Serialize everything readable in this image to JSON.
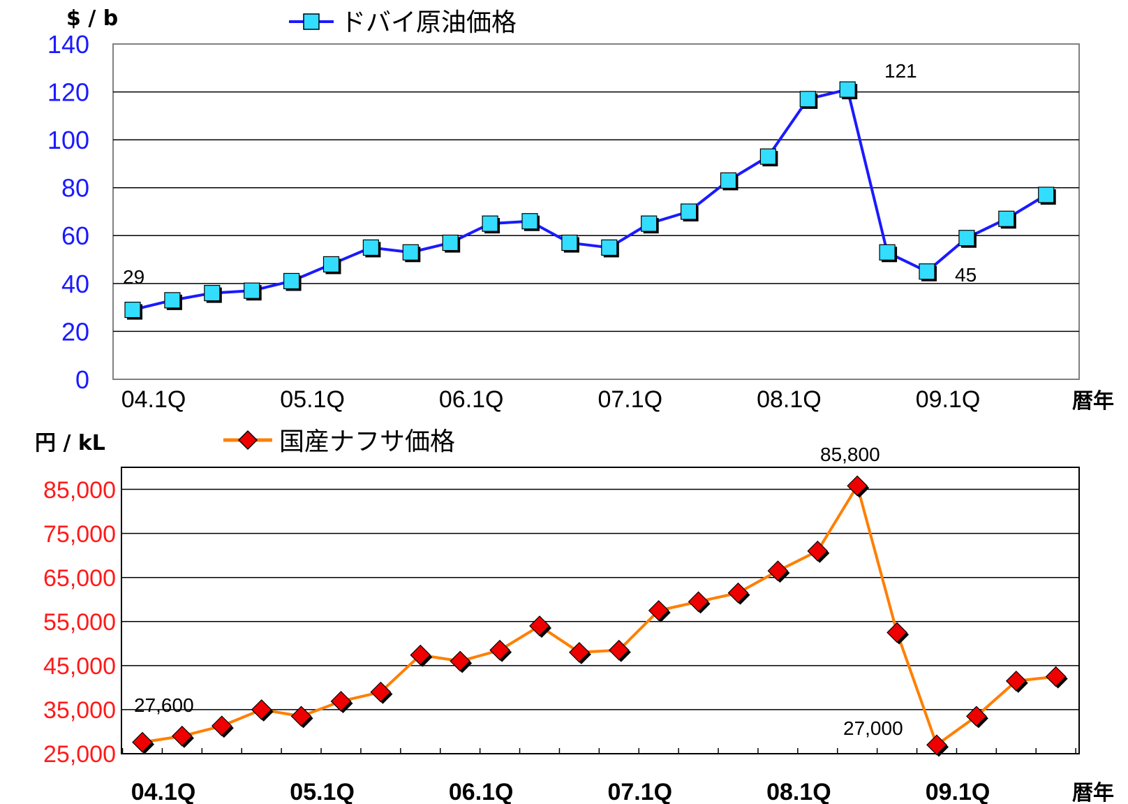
{
  "chart_data": [
    {
      "type": "line",
      "unit_label": "$ / b",
      "x_axis_label": "暦年",
      "x_tick_labels": [
        "04.1Q",
        "05.1Q",
        "06.1Q",
        "07.1Q",
        "08.1Q",
        "09.1Q"
      ],
      "categories": [
        "04.1Q",
        "04.2Q",
        "04.3Q",
        "04.4Q",
        "05.1Q",
        "05.2Q",
        "05.3Q",
        "05.4Q",
        "06.1Q",
        "06.2Q",
        "06.3Q",
        "06.4Q",
        "07.1Q",
        "07.2Q",
        "07.3Q",
        "07.4Q",
        "08.1Q",
        "08.2Q",
        "08.3Q",
        "08.4Q",
        "09.1Q",
        "09.2Q",
        "09.3Q",
        "09.4Q"
      ],
      "series": [
        {
          "name": "ドバイ原油価格",
          "color": "#1a1aff",
          "marker": "square",
          "marker_color": "#33ddff",
          "values": [
            29,
            33,
            36,
            37,
            41,
            48,
            55,
            53,
            57,
            65,
            66,
            57,
            55,
            65,
            70,
            83,
            93,
            117,
            121,
            53,
            45,
            59,
            67,
            77
          ]
        }
      ],
      "y_ticks": [
        "0",
        "20",
        "40",
        "60",
        "80",
        "100",
        "120",
        "140"
      ],
      "ylim": [
        0,
        140
      ],
      "y_tick_color": "#1a1aff",
      "grid": true,
      "annotations": [
        "29",
        "121",
        "45"
      ]
    },
    {
      "type": "line",
      "unit_label": "円 / kL",
      "x_axis_label": "暦年",
      "x_tick_labels": [
        "04.1Q",
        "05.1Q",
        "06.1Q",
        "07.1Q",
        "08.1Q",
        "09.1Q"
      ],
      "categories": [
        "04.1Q",
        "04.2Q",
        "04.3Q",
        "04.4Q",
        "05.1Q",
        "05.2Q",
        "05.3Q",
        "05.4Q",
        "06.1Q",
        "06.2Q",
        "06.3Q",
        "06.4Q",
        "07.1Q",
        "07.2Q",
        "07.3Q",
        "07.4Q",
        "08.1Q",
        "08.2Q",
        "08.3Q",
        "08.4Q",
        "09.1Q",
        "09.2Q",
        "09.3Q",
        "09.4Q"
      ],
      "series": [
        {
          "name": "国産ナフサ価格",
          "color": "#ff7f00",
          "marker": "diamond",
          "marker_color": "#ee0000",
          "values": [
            27600,
            29000,
            31300,
            35000,
            33500,
            36900,
            39000,
            47400,
            46000,
            48500,
            54000,
            48000,
            48500,
            57500,
            59500,
            61500,
            66500,
            71000,
            85800,
            52500,
            27000,
            33500,
            41500,
            42500
          ]
        }
      ],
      "y_ticks": [
        "25,000",
        "35,000",
        "45,000",
        "55,000",
        "65,000",
        "75,000",
        "85,000"
      ],
      "ylim": [
        25000,
        90000
      ],
      "y_tick_color": "#ff1a1a",
      "grid": true,
      "annotations": [
        "27,600",
        "85,800",
        "27,000"
      ]
    }
  ]
}
